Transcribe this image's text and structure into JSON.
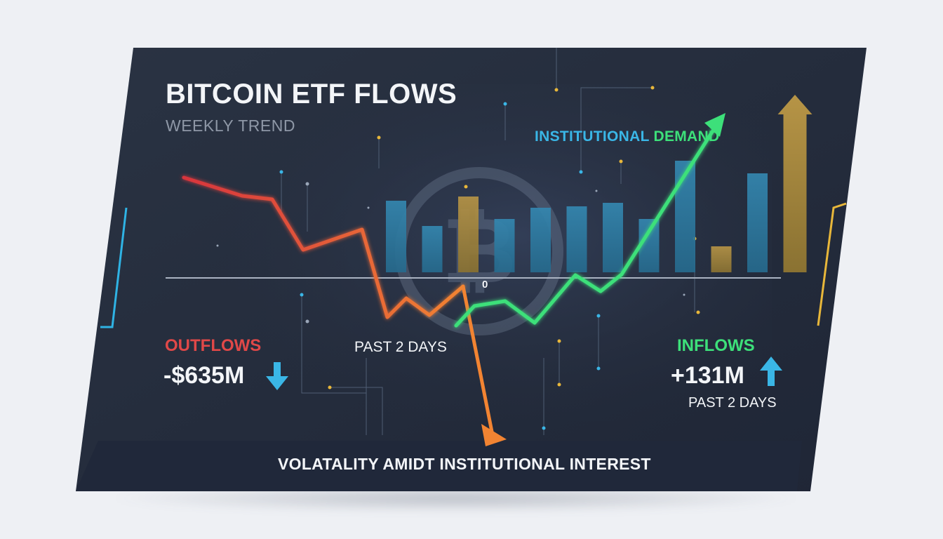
{
  "title": "BITCOIN ETF FLOWS",
  "subtitle": "WEEKLY TREND",
  "annotation": {
    "part1": "INSTITUTIONAL",
    "part2": "DEMAND"
  },
  "outflows": {
    "label": "OUTFLOWS",
    "value": "-$635M",
    "icon": "arrow-down-icon"
  },
  "center_label": "PAST 2 DAYS",
  "inflows": {
    "label": "INFLOWS",
    "value": "+131M",
    "sublabel": "PAST 2 DAYS",
    "icon": "arrow-up-icon"
  },
  "footer": "VOLATALITY AMIDT INSTITUTIONAL INTEREST",
  "colors": {
    "panel": "#252d3d",
    "outflow_red": "#e04848",
    "outflow_orange": "#f07a30",
    "inflow_green": "#3de07a",
    "bar_blue": "#2f7fa6",
    "bar_gold": "#a8893e",
    "accent_cyan": "#3ab6e6",
    "accent_yellow": "#e8b73a"
  },
  "chart_data": {
    "type": "bar",
    "zero_label": "0",
    "bars": [
      {
        "value": 102,
        "color": "blue"
      },
      {
        "value": 66,
        "color": "blue"
      },
      {
        "value": 108,
        "color": "gold"
      },
      {
        "value": 76,
        "color": "blue"
      },
      {
        "value": 92,
        "color": "blue"
      },
      {
        "value": 94,
        "color": "blue"
      },
      {
        "value": 99,
        "color": "blue"
      },
      {
        "value": 76,
        "color": "blue"
      },
      {
        "value": 159,
        "color": "blue"
      },
      {
        "value": 37,
        "color": "gold"
      },
      {
        "value": 141,
        "color": "blue"
      },
      {
        "value": 253,
        "color": "gold",
        "arrow": true
      }
    ],
    "series": [
      {
        "color": "red-orange",
        "values": [
          135,
          109,
          104,
          32,
          61,
          -64,
          -37,
          -61,
          -20
        ]
      },
      {
        "color": "green",
        "values": [
          -76,
          -48,
          -41,
          -72,
          -4,
          -27,
          -3,
          211
        ]
      }
    ]
  }
}
